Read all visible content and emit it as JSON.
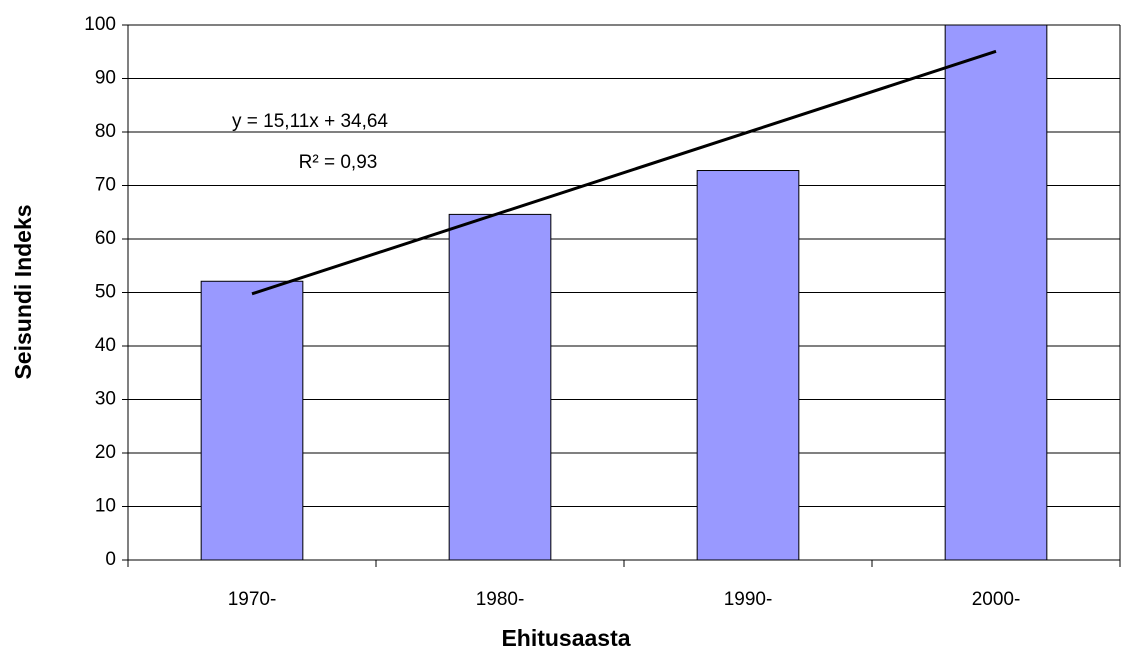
{
  "chart_data": {
    "type": "bar",
    "categories": [
      "1970-",
      "1980-",
      "1990-",
      "2000-"
    ],
    "values": [
      52.1,
      64.6,
      72.8,
      100
    ],
    "color": "#9999ff",
    "xlabel": "Ehitusaasta",
    "ylabel": "Seisundi Indeks",
    "ylim": [
      0,
      100
    ],
    "yticks": [
      0,
      10,
      20,
      30,
      40,
      50,
      60,
      70,
      80,
      90,
      100
    ],
    "grid": true,
    "trendline": {
      "slope": 15.11,
      "intercept": 34.64,
      "equation": "y = 15,11x + 34,64",
      "r2": 0.93,
      "r2_label": "R² = 0,93"
    }
  }
}
